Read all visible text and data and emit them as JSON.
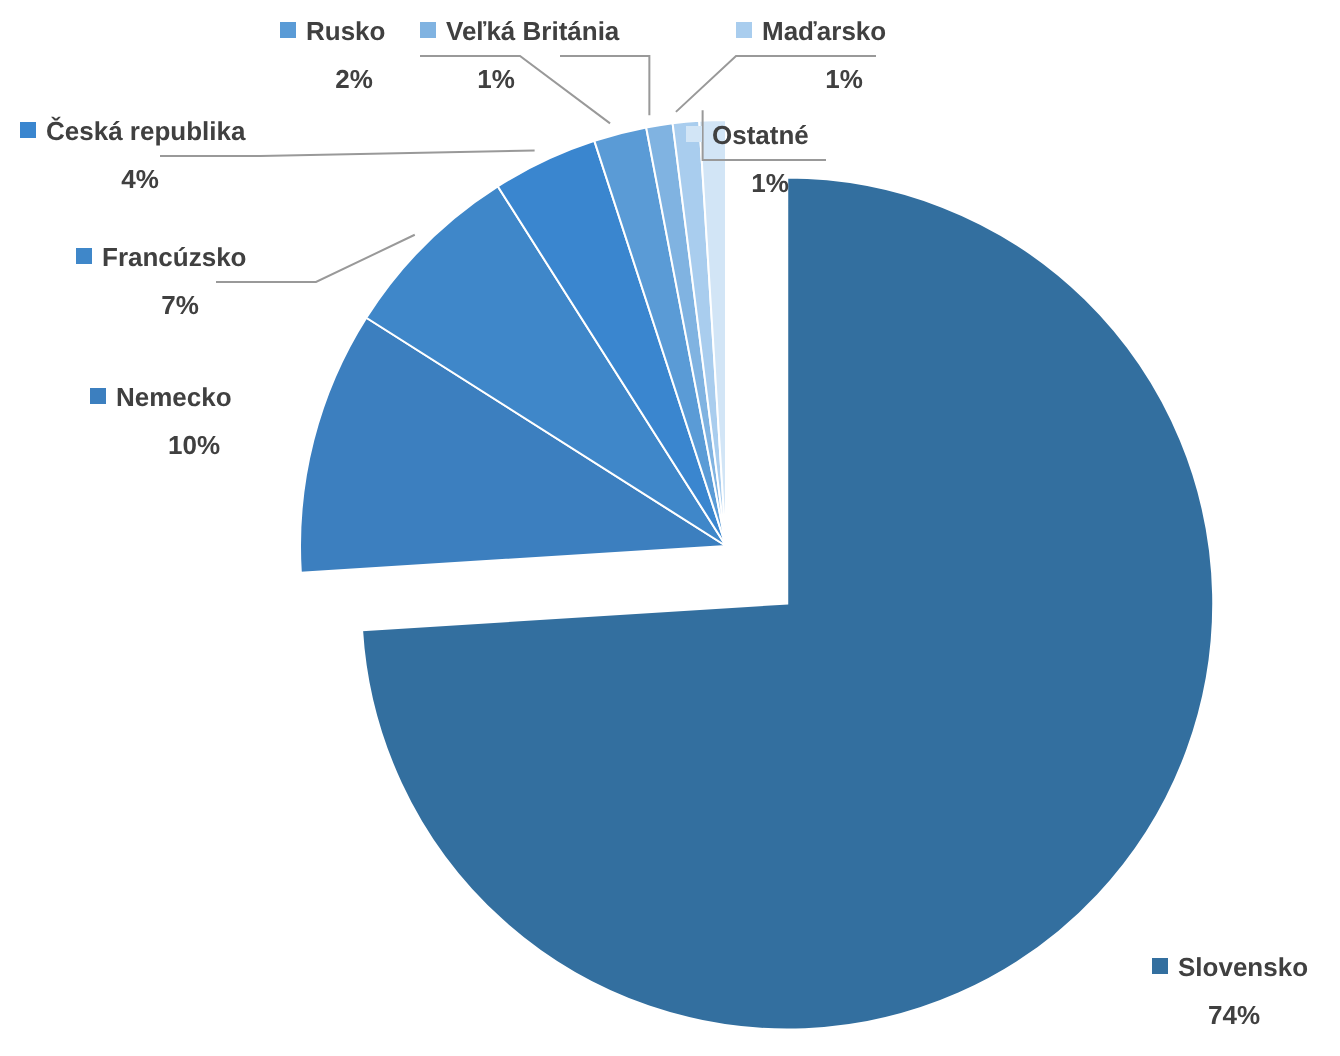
{
  "chart_data": {
    "type": "pie",
    "categories": [
      "Slovensko",
      "Nemecko",
      "Francúzsko",
      "Česká republika",
      "Rusko",
      "Veľká Británia",
      "Maďarsko",
      "Ostatné"
    ],
    "values": [
      74,
      10,
      7,
      4,
      2,
      1,
      1,
      1
    ],
    "value_labels": [
      "74%",
      "10%",
      "7%",
      "4%",
      "2%",
      "1%",
      "1%",
      "1%"
    ],
    "colors": [
      "#336f9f",
      "#3c7fbf",
      "#3f87c9",
      "#3a86cf",
      "#5a9bd6",
      "#80b3e1",
      "#a9cdee",
      "#d2e5f6"
    ],
    "legend": "top"
  }
}
